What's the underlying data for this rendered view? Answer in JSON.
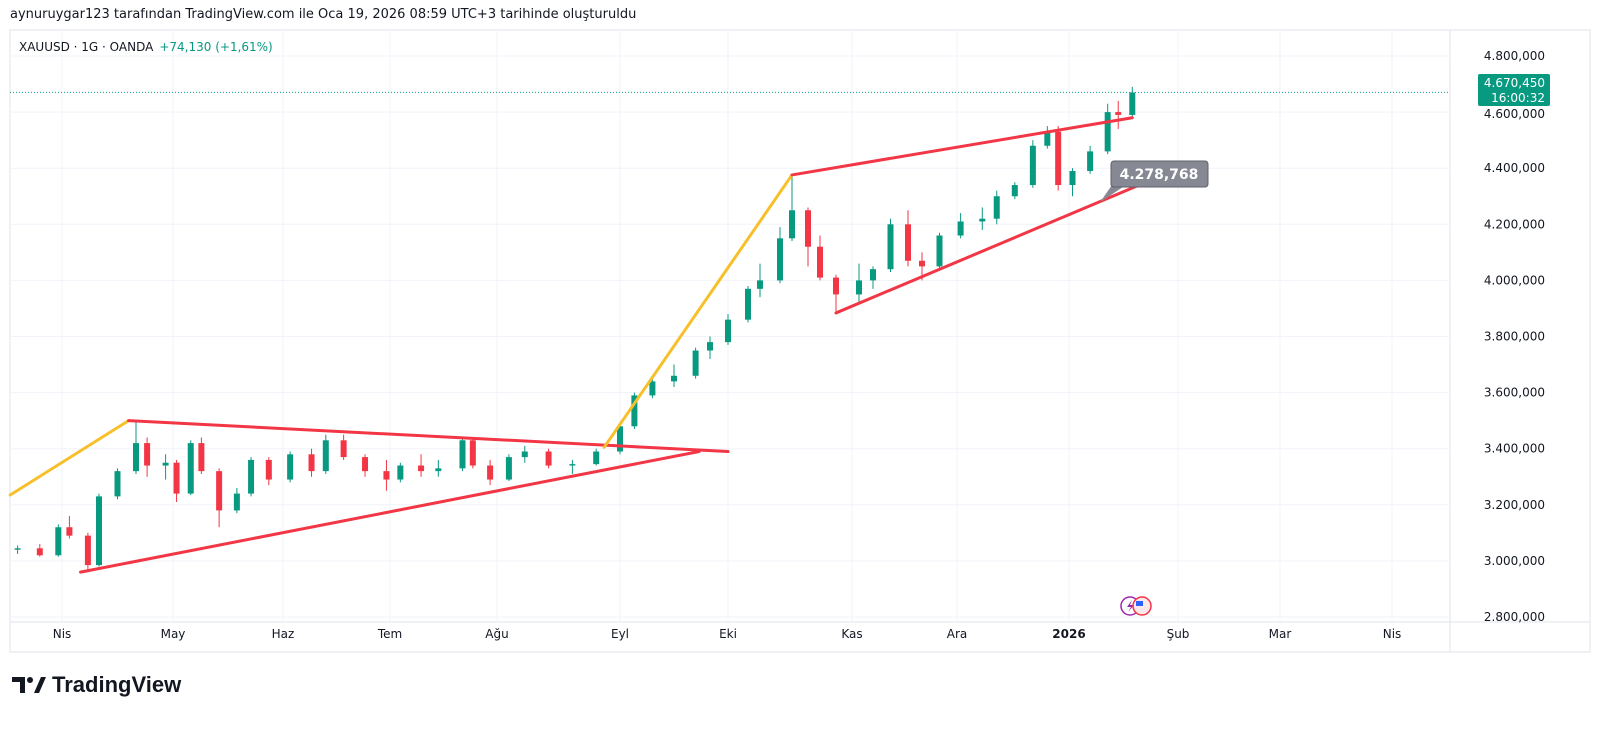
{
  "header": {
    "credit": "aynuruygar123 tarafından TradingView.com ile Oca 19, 2026 08:59 UTC+3 tarihinde oluşturuldu",
    "symbol": "XAUUSD · 1G · OANDA",
    "change": "+74,130 (+1,61%)"
  },
  "footer": {
    "brand": "TradingView"
  },
  "colors": {
    "up": "#089981",
    "down": "#f23645",
    "trend_red": "#f23645",
    "trend_yellow": "#f7c02b",
    "price_label_bg": "#089981",
    "callout_bg": "#868993"
  },
  "chart_data": {
    "type": "candlestick",
    "symbol": "XAUUSD",
    "interval": "1D",
    "ylim": [
      2780,
      4860
    ],
    "grid": true,
    "y_ticks": [
      "4.800,000",
      "4.600,000",
      "4.400,000",
      "4.200,000",
      "4.000,000",
      "3.800,000",
      "3.600,000",
      "3.400,000",
      "3.200,000",
      "3.000,000",
      "2.800,000"
    ],
    "y_tick_values": [
      4800,
      4600,
      4400,
      4200,
      4000,
      3800,
      3600,
      3400,
      3200,
      3000,
      2800
    ],
    "x_ticks": [
      {
        "label": "Nis",
        "date": "2025-04-01"
      },
      {
        "label": "May",
        "date": "2025-05-01"
      },
      {
        "label": "Haz",
        "date": "2025-06-01"
      },
      {
        "label": "Tem",
        "date": "2025-07-01"
      },
      {
        "label": "Ağu",
        "date": "2025-08-01"
      },
      {
        "label": "Eyl",
        "date": "2025-09-01"
      },
      {
        "label": "Eki",
        "date": "2025-10-01"
      },
      {
        "label": "Kas",
        "date": "2025-11-01"
      },
      {
        "label": "Ara",
        "date": "2025-12-01"
      },
      {
        "label": "2026",
        "date": "2026-01-01",
        "bold": true
      },
      {
        "label": "Şub",
        "date": "2026-02-01"
      },
      {
        "label": "Mar",
        "date": "2026-03-01"
      },
      {
        "label": "Nis",
        "date": "2026-04-01"
      }
    ],
    "last_price": {
      "value": 4670.45,
      "label": "4.670,450",
      "countdown": "16:00:32"
    },
    "callout": {
      "label": "4.278,768",
      "date": "2026-01-13",
      "value": 4278.768
    },
    "candles": [
      [
        "2025-03-20",
        3040,
        3055,
        3025,
        3045
      ],
      [
        "2025-03-26",
        3045,
        3060,
        3015,
        3020
      ],
      [
        "2025-03-31",
        3020,
        3130,
        3015,
        3120
      ],
      [
        "2025-04-03",
        3120,
        3160,
        3080,
        3090
      ],
      [
        "2025-04-08",
        3090,
        3100,
        2960,
        2985
      ],
      [
        "2025-04-11",
        2985,
        3240,
        2980,
        3230
      ],
      [
        "2025-04-16",
        3230,
        3330,
        3220,
        3320
      ],
      [
        "2025-04-21",
        3320,
        3500,
        3310,
        3420
      ],
      [
        "2025-04-24",
        3420,
        3440,
        3300,
        3340
      ],
      [
        "2025-04-29",
        3340,
        3380,
        3290,
        3350
      ],
      [
        "2025-05-02",
        3350,
        3360,
        3210,
        3240
      ],
      [
        "2025-05-06",
        3240,
        3430,
        3235,
        3420
      ],
      [
        "2025-05-09",
        3420,
        3440,
        3310,
        3320
      ],
      [
        "2025-05-14",
        3320,
        3330,
        3120,
        3180
      ],
      [
        "2025-05-19",
        3180,
        3260,
        3170,
        3240
      ],
      [
        "2025-05-23",
        3240,
        3370,
        3230,
        3360
      ],
      [
        "2025-05-28",
        3360,
        3370,
        3270,
        3290
      ],
      [
        "2025-06-03",
        3290,
        3390,
        3280,
        3380
      ],
      [
        "2025-06-09",
        3380,
        3400,
        3300,
        3320
      ],
      [
        "2025-06-13",
        3320,
        3450,
        3310,
        3430
      ],
      [
        "2025-06-18",
        3430,
        3450,
        3360,
        3370
      ],
      [
        "2025-06-24",
        3370,
        3380,
        3300,
        3320
      ],
      [
        "2025-06-30",
        3320,
        3360,
        3250,
        3290
      ],
      [
        "2025-07-04",
        3290,
        3350,
        3280,
        3340
      ],
      [
        "2025-07-10",
        3340,
        3380,
        3300,
        3320
      ],
      [
        "2025-07-15",
        3320,
        3360,
        3300,
        3330
      ],
      [
        "2025-07-22",
        3330,
        3440,
        3320,
        3430
      ],
      [
        "2025-07-25",
        3430,
        3440,
        3330,
        3340
      ],
      [
        "2025-07-30",
        3340,
        3360,
        3270,
        3290
      ],
      [
        "2025-08-04",
        3290,
        3380,
        3285,
        3370
      ],
      [
        "2025-08-08",
        3370,
        3410,
        3350,
        3390
      ],
      [
        "2025-08-14",
        3390,
        3400,
        3330,
        3340
      ],
      [
        "2025-08-20",
        3340,
        3360,
        3310,
        3345
      ],
      [
        "2025-08-26",
        3345,
        3400,
        3340,
        3390
      ],
      [
        "2025-09-01",
        3390,
        3490,
        3380,
        3480
      ],
      [
        "2025-09-05",
        3480,
        3600,
        3470,
        3590
      ],
      [
        "2025-09-10",
        3590,
        3650,
        3580,
        3640
      ],
      [
        "2025-09-16",
        3640,
        3700,
        3620,
        3660
      ],
      [
        "2025-09-22",
        3660,
        3760,
        3650,
        3750
      ],
      [
        "2025-09-26",
        3750,
        3800,
        3720,
        3780
      ],
      [
        "2025-10-01",
        3780,
        3880,
        3770,
        3860
      ],
      [
        "2025-10-06",
        3860,
        3980,
        3850,
        3970
      ],
      [
        "2025-10-09",
        3970,
        4060,
        3940,
        4000
      ],
      [
        "2025-10-14",
        4000,
        4190,
        3990,
        4150
      ],
      [
        "2025-10-17",
        4150,
        4380,
        4140,
        4250
      ],
      [
        "2025-10-21",
        4250,
        4260,
        4050,
        4120
      ],
      [
        "2025-10-24",
        4120,
        4160,
        4000,
        4010
      ],
      [
        "2025-10-28",
        4010,
        4020,
        3890,
        3950
      ],
      [
        "2025-11-03",
        3950,
        4060,
        3920,
        4000
      ],
      [
        "2025-11-07",
        4000,
        4050,
        3970,
        4040
      ],
      [
        "2025-11-12",
        4040,
        4220,
        4030,
        4200
      ],
      [
        "2025-11-17",
        4200,
        4250,
        4050,
        4070
      ],
      [
        "2025-11-21",
        4070,
        4100,
        4000,
        4050
      ],
      [
        "2025-11-26",
        4050,
        4170,
        4040,
        4160
      ],
      [
        "2025-12-02",
        4160,
        4240,
        4150,
        4210
      ],
      [
        "2025-12-08",
        4210,
        4260,
        4180,
        4220
      ],
      [
        "2025-12-12",
        4220,
        4320,
        4200,
        4300
      ],
      [
        "2025-12-17",
        4300,
        4350,
        4290,
        4340
      ],
      [
        "2025-12-22",
        4340,
        4500,
        4330,
        4480
      ],
      [
        "2025-12-26",
        4480,
        4550,
        4470,
        4530
      ],
      [
        "2025-12-29",
        4530,
        4550,
        4320,
        4340
      ],
      [
        "2026-01-02",
        4340,
        4400,
        4300,
        4390
      ],
      [
        "2026-01-07",
        4390,
        4480,
        4380,
        4460
      ],
      [
        "2026-01-12",
        4460,
        4630,
        4450,
        4600
      ],
      [
        "2026-01-15",
        4600,
        4640,
        4540,
        4590
      ],
      [
        "2026-01-19",
        4590,
        4690,
        4580,
        4670
      ]
    ],
    "trendlines": [
      {
        "color": "yellow",
        "from": [
          "2025-03-18",
          3235
        ],
        "to": [
          "2025-04-19",
          3500
        ]
      },
      {
        "color": "red",
        "from": [
          "2025-04-19",
          3500
        ],
        "to": [
          "2025-10-01",
          3390
        ]
      },
      {
        "color": "red",
        "from": [
          "2025-04-06",
          2960
        ],
        "to": [
          "2025-09-23",
          3390
        ]
      },
      {
        "color": "yellow",
        "from": [
          "2025-08-28",
          3405
        ],
        "to": [
          "2025-10-17",
          4376
        ]
      },
      {
        "color": "red",
        "from": [
          "2025-10-17",
          4376
        ],
        "to": [
          "2026-01-19",
          4580
        ]
      },
      {
        "color": "red",
        "from": [
          "2025-10-28",
          3884
        ],
        "to": [
          "2026-01-21",
          4340
        ]
      }
    ]
  }
}
